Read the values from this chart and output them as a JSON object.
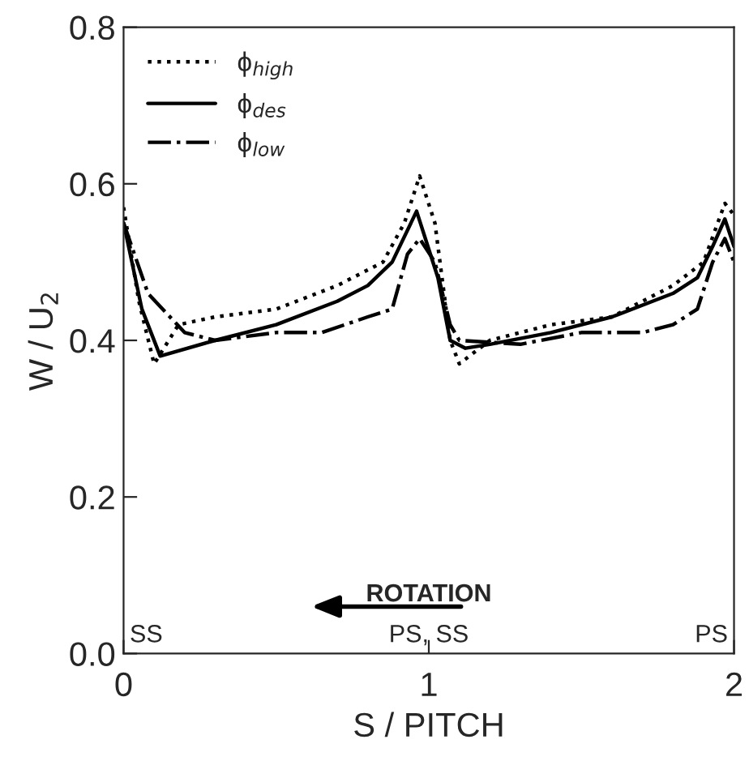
{
  "chart_data": {
    "type": "line",
    "xlabel": "S / PITCH",
    "ylabel": "W / U$_{2}$",
    "xlim": [
      0,
      2
    ],
    "xticks": [
      0,
      1,
      2
    ],
    "ylim": [
      0,
      0.8
    ],
    "yticks": [
      {
        "value": 0,
        "label": "0.0"
      },
      0.2,
      0.4,
      0.6,
      0.8
    ],
    "grid": false,
    "legend": "top left",
    "marker": "none",
    "series": [
      {
        "name": "ϕ$_{high}$",
        "color": "#000000",
        "line_style": "dotted",
        "x": [
          0,
          0.05,
          0.1,
          0.18,
          0.3,
          0.5,
          0.7,
          0.85,
          0.92,
          0.97,
          1.02,
          1.07,
          1.1,
          1.2,
          1.4,
          1.6,
          1.8,
          1.9,
          1.97,
          2.0
        ],
        "values": [
          0.57,
          0.45,
          0.37,
          0.42,
          0.43,
          0.44,
          0.47,
          0.5,
          0.55,
          0.61,
          0.55,
          0.4,
          0.37,
          0.4,
          0.42,
          0.43,
          0.47,
          0.5,
          0.575,
          0.56
        ]
      },
      {
        "name": "ϕ$_{des}$",
        "color": "#000000",
        "line_style": "solid",
        "x": [
          0,
          0.06,
          0.12,
          0.3,
          0.5,
          0.7,
          0.8,
          0.88,
          0.96,
          1.03,
          1.07,
          1.12,
          1.2,
          1.4,
          1.6,
          1.8,
          1.88,
          1.93,
          1.97,
          2.0
        ],
        "values": [
          0.55,
          0.44,
          0.38,
          0.4,
          0.42,
          0.45,
          0.47,
          0.5,
          0.565,
          0.48,
          0.4,
          0.39,
          0.395,
          0.41,
          0.43,
          0.46,
          0.48,
          0.52,
          0.555,
          0.52
        ]
      },
      {
        "name": "ϕ$_{low}$",
        "color": "#000000",
        "line_style": "dashdot",
        "x": [
          0,
          0.08,
          0.2,
          0.3,
          0.5,
          0.65,
          0.8,
          0.88,
          0.93,
          0.97,
          1.02,
          1.07,
          1.1,
          1.3,
          1.5,
          1.7,
          1.8,
          1.88,
          1.93,
          1.97,
          2.0
        ],
        "values": [
          0.55,
          0.46,
          0.41,
          0.4,
          0.41,
          0.41,
          0.43,
          0.44,
          0.51,
          0.53,
          0.5,
          0.42,
          0.4,
          0.395,
          0.41,
          0.41,
          0.42,
          0.44,
          0.5,
          0.53,
          0.5
        ]
      }
    ],
    "annotations": [
      "SS",
      "PS, SS",
      "PS",
      "ROTATION"
    ]
  }
}
